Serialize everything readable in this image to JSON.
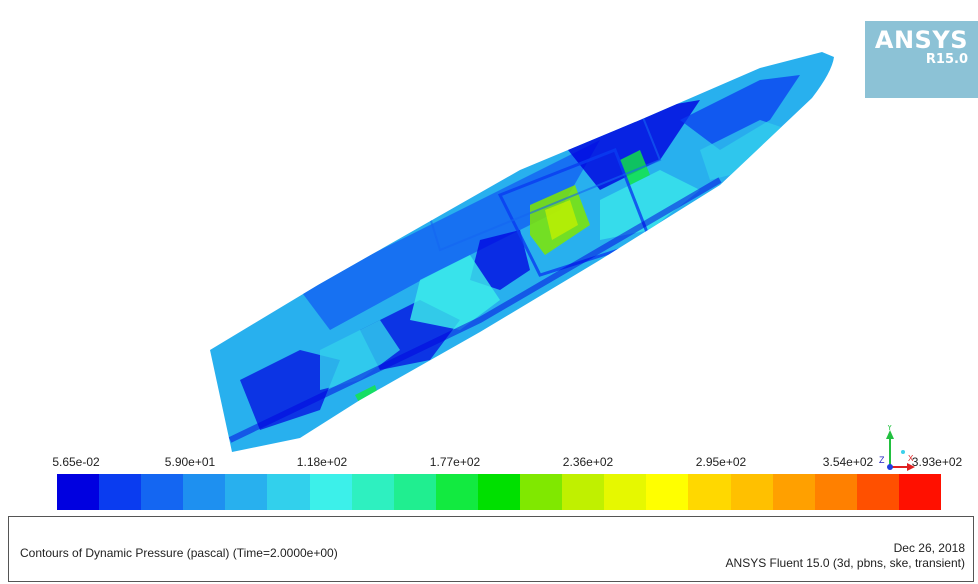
{
  "branding": {
    "logo_word": "ANSYS",
    "logo_version": "R15.0",
    "logo_color": "#8cc2d6"
  },
  "colorbar": {
    "tick_labels": [
      "5.65e-02",
      "5.90e+01",
      "1.18e+02",
      "1.77e+02",
      "2.36e+02",
      "2.95e+02",
      "3.54e+02",
      "3.93e+02"
    ],
    "colors": [
      "#0000e0",
      "#0a3cf0",
      "#1466f2",
      "#1e90f0",
      "#28b0ee",
      "#32d0ec",
      "#3cf0ea",
      "#2ef0c0",
      "#20ee90",
      "#12ea40",
      "#00e000",
      "#80e800",
      "#c0f000",
      "#e6f800",
      "#ffff00",
      "#ffd800",
      "#ffc000",
      "#ffa000",
      "#ff8000",
      "#ff5000",
      "#ff1000"
    ]
  },
  "axis_triad": {
    "y_label": "Y",
    "z_label": "Z",
    "x_label": "X"
  },
  "footer": {
    "caption": "Contours of Dynamic Pressure (pascal)  (Time=2.0000e+00)",
    "date": "Dec 26, 2018",
    "solver": "ANSYS Fluent 15.0 (3d, pbns, ske, transient)"
  }
}
